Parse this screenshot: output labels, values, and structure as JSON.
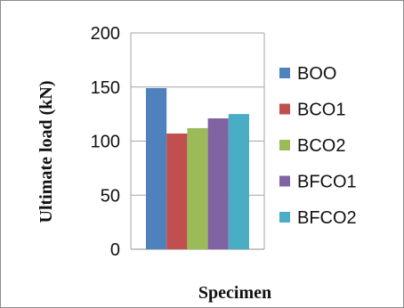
{
  "chart_data": {
    "type": "bar",
    "title": "",
    "xlabel": "Specimen",
    "ylabel": "Ultimate load (kN)",
    "ylim": [
      0,
      200
    ],
    "yticks": [
      0,
      50,
      100,
      150,
      200
    ],
    "grid": "horizontal",
    "legend_position": "right",
    "series": [
      {
        "name": "BOO",
        "value": 149,
        "color": "#4f81bd"
      },
      {
        "name": "BCO1",
        "value": 107,
        "color": "#c0504d"
      },
      {
        "name": "BCO2",
        "value": 112,
        "color": "#9bbb59"
      },
      {
        "name": "BFCO1",
        "value": 121,
        "color": "#8064a2"
      },
      {
        "name": "BFCO2",
        "value": 125,
        "color": "#4bacc6"
      }
    ]
  }
}
